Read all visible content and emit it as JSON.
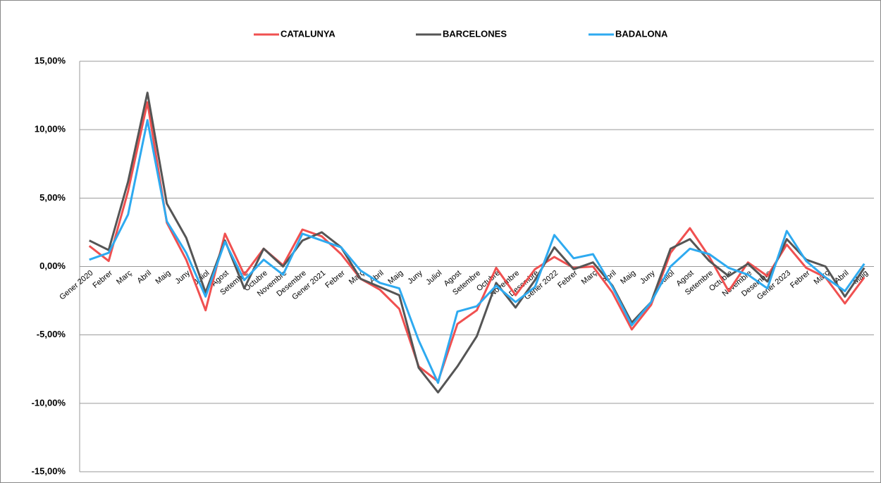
{
  "chart_data": {
    "type": "line",
    "categories": [
      "Gener 2020",
      "Febrer",
      "Març",
      "Abril",
      "Maig",
      "Juny",
      "Juliol",
      "Agost",
      "Setembre",
      "Octubre",
      "Novembre",
      "Desembre",
      "Gener 2021",
      "Febrer",
      "Març",
      "Abril",
      "Maig",
      "Juny",
      "Juliol",
      "Agost",
      "Setembre",
      "Octubre",
      "Novembre",
      "Desembre",
      "Gener 2022",
      "Febrer",
      "Març",
      "Abril",
      "Maig",
      "Juny",
      "Juliol",
      "Agost",
      "Setembre",
      "Octubre",
      "Novembre",
      "Desembre",
      "Gener 2023",
      "Febrer",
      "Març",
      "Abril",
      "Maig"
    ],
    "series": [
      {
        "name": "CATALUNYA",
        "color": "#f05050",
        "values": [
          1.5,
          0.4,
          5.5,
          12.0,
          3.2,
          0.5,
          -3.2,
          2.4,
          -0.6,
          1.3,
          0.1,
          2.7,
          2.2,
          0.9,
          -0.9,
          -1.7,
          -3.1,
          -7.3,
          -8.4,
          -4.2,
          -3.2,
          -0.1,
          -2.1,
          -0.2,
          0.7,
          -0.1,
          0.0,
          -1.9,
          -4.6,
          -2.8,
          1.0,
          2.8,
          0.7,
          -1.8,
          0.3,
          -0.7,
          1.6,
          -0.1,
          -0.8,
          -2.7,
          -0.8
        ]
      },
      {
        "name": "BARCELONES",
        "color": "#555555",
        "values": [
          1.9,
          1.2,
          6.2,
          12.7,
          4.6,
          2.1,
          -1.9,
          1.9,
          -1.6,
          1.3,
          0.0,
          1.9,
          2.5,
          1.4,
          -0.9,
          -1.5,
          -2.1,
          -7.4,
          -9.2,
          -7.3,
          -5.1,
          -1.2,
          -3.0,
          -1.0,
          1.4,
          -0.2,
          0.3,
          -1.4,
          -4.1,
          -2.6,
          1.3,
          2.0,
          0.4,
          -0.7,
          0.2,
          -1.1,
          2.0,
          0.5,
          0.0,
          -2.2,
          -0.1
        ]
      },
      {
        "name": "BADALONA",
        "color": "#2eaaf0",
        "values": [
          0.5,
          1.0,
          3.8,
          10.7,
          3.3,
          1.0,
          -2.2,
          1.8,
          -1.0,
          0.5,
          -0.6,
          2.4,
          1.9,
          1.4,
          -0.3,
          -1.2,
          -1.6,
          -5.4,
          -8.5,
          -3.3,
          -2.9,
          -1.4,
          -2.6,
          -1.5,
          2.3,
          0.6,
          0.9,
          -1.5,
          -4.3,
          -2.6,
          0.0,
          1.3,
          0.9,
          -0.1,
          -0.6,
          -1.6,
          2.6,
          0.4,
          -0.8,
          -1.8,
          0.2
        ]
      }
    ],
    "ylim": [
      -15,
      15
    ],
    "yticks": [
      {
        "value": -15,
        "label": "-15,00%"
      },
      {
        "value": -10,
        "label": "-10,00%"
      },
      {
        "value": -5,
        "label": "-5,00%"
      },
      {
        "value": 0,
        "label": "0,00%"
      },
      {
        "value": 5,
        "label": "5,00%"
      },
      {
        "value": 10,
        "label": "10,00%"
      },
      {
        "value": 15,
        "label": "15,00%"
      }
    ],
    "grid": true,
    "legend": "top"
  }
}
